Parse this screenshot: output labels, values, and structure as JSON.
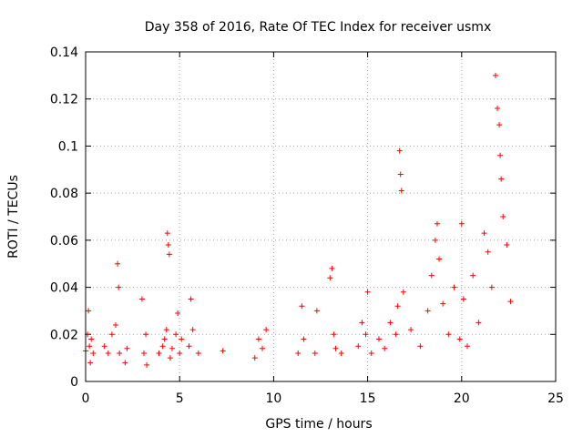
{
  "chart_data": {
    "type": "scatter",
    "title": "Day 358 of 2016, Rate Of TEC Index for receiver usmx",
    "xlabel": "GPS time / hours",
    "ylabel": "ROTI / TECUs",
    "xlim": [
      0,
      25
    ],
    "ylim": [
      0,
      0.14
    ],
    "x_ticks": [
      0,
      5,
      10,
      15,
      20,
      25
    ],
    "x_tick_labels": [
      "0",
      "5",
      "10",
      "15",
      "20",
      "25"
    ],
    "y_ticks": [
      0,
      0.02,
      0.04,
      0.06,
      0.08,
      0.1,
      0.12,
      0.14
    ],
    "y_tick_labels": [
      "0",
      "0.02",
      "0.04",
      "0.06",
      "0.08",
      "0.1",
      "0.12",
      "0.14"
    ],
    "grid": true,
    "marker": "+",
    "color": "#ff0000",
    "series": [
      {
        "name": "ROTI",
        "x": [
          0.0,
          0.1,
          0.2,
          0.3,
          0.4,
          0.15,
          0.25,
          1.0,
          1.2,
          1.4,
          1.6,
          1.7,
          1.75,
          1.8,
          2.1,
          2.2,
          3.0,
          3.1,
          3.2,
          3.25,
          3.9,
          4.1,
          4.2,
          4.3,
          4.35,
          4.4,
          4.45,
          4.5,
          4.6,
          4.8,
          4.9,
          5.0,
          5.1,
          5.5,
          5.6,
          5.7,
          6.0,
          7.3,
          9.0,
          9.2,
          9.4,
          9.6,
          11.3,
          11.5,
          11.6,
          12.2,
          12.3,
          13.0,
          13.1,
          13.2,
          13.3,
          13.6,
          14.5,
          14.7,
          14.9,
          15.0,
          15.2,
          15.6,
          15.9,
          16.2,
          16.5,
          16.6,
          16.7,
          16.75,
          16.8,
          16.9,
          17.3,
          17.8,
          18.2,
          18.4,
          18.6,
          18.7,
          18.8,
          19.0,
          19.3,
          19.6,
          19.9,
          20.0,
          20.1,
          20.3,
          20.6,
          20.9,
          21.2,
          21.4,
          21.6,
          21.8,
          21.9,
          22.0,
          22.05,
          22.1,
          22.2,
          22.4,
          22.6
        ],
        "y": [
          0.013,
          0.02,
          0.015,
          0.018,
          0.012,
          0.03,
          0.008,
          0.015,
          0.012,
          0.02,
          0.024,
          0.05,
          0.04,
          0.012,
          0.008,
          0.014,
          0.035,
          0.012,
          0.02,
          0.007,
          0.012,
          0.015,
          0.018,
          0.022,
          0.063,
          0.058,
          0.054,
          0.01,
          0.014,
          0.02,
          0.029,
          0.012,
          0.018,
          0.015,
          0.035,
          0.022,
          0.012,
          0.013,
          0.01,
          0.018,
          0.014,
          0.022,
          0.012,
          0.032,
          0.018,
          0.012,
          0.03,
          0.044,
          0.048,
          0.02,
          0.014,
          0.012,
          0.015,
          0.025,
          0.02,
          0.038,
          0.012,
          0.018,
          0.014,
          0.025,
          0.02,
          0.032,
          0.098,
          0.088,
          0.081,
          0.038,
          0.022,
          0.015,
          0.03,
          0.045,
          0.06,
          0.067,
          0.052,
          0.033,
          0.02,
          0.04,
          0.018,
          0.067,
          0.035,
          0.015,
          0.045,
          0.025,
          0.063,
          0.055,
          0.04,
          0.13,
          0.116,
          0.109,
          0.096,
          0.086,
          0.07,
          0.058,
          0.034
        ]
      }
    ]
  }
}
